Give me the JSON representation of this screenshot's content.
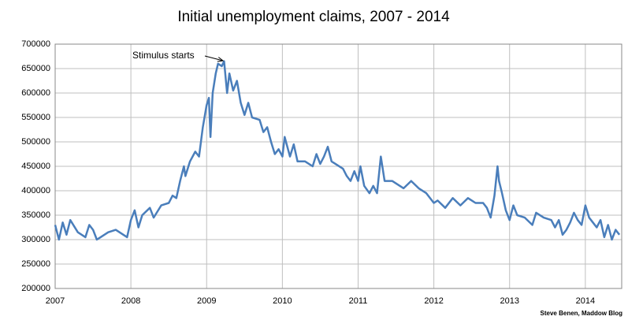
{
  "chart_data": {
    "type": "line",
    "title": "Initial unemployment claims, 2007 - 2014",
    "annotation": "Stimulus starts",
    "source": "Steve Benen, Maddow Blog",
    "color": "#4a7ebb",
    "grid": true,
    "xlim": [
      2007,
      2014.48
    ],
    "xticks": [
      2007,
      2008,
      2009,
      2010,
      2011,
      2012,
      2013,
      2014
    ],
    "ylim": [
      200000,
      700000
    ],
    "yticks": [
      200000,
      250000,
      300000,
      350000,
      400000,
      450000,
      500000,
      550000,
      600000,
      650000,
      700000
    ],
    "x": [
      2007.0,
      2007.05,
      2007.1,
      2007.15,
      2007.2,
      2007.3,
      2007.4,
      2007.45,
      2007.5,
      2007.55,
      2007.6,
      2007.7,
      2007.8,
      2007.9,
      2007.95,
      2008.0,
      2008.05,
      2008.1,
      2008.15,
      2008.25,
      2008.3,
      2008.4,
      2008.5,
      2008.55,
      2008.6,
      2008.65,
      2008.7,
      2008.72,
      2008.78,
      2008.85,
      2008.9,
      2008.95,
      2009.0,
      2009.03,
      2009.05,
      2009.08,
      2009.12,
      2009.15,
      2009.2,
      2009.23,
      2009.27,
      2009.3,
      2009.35,
      2009.4,
      2009.45,
      2009.5,
      2009.55,
      2009.6,
      2009.7,
      2009.75,
      2009.8,
      2009.85,
      2009.9,
      2009.95,
      2010.0,
      2010.03,
      2010.1,
      2010.15,
      2010.2,
      2010.3,
      2010.4,
      2010.45,
      2010.5,
      2010.55,
      2010.6,
      2010.65,
      2010.7,
      2010.8,
      2010.85,
      2010.9,
      2010.95,
      2011.0,
      2011.03,
      2011.08,
      2011.15,
      2011.2,
      2011.25,
      2011.3,
      2011.35,
      2011.45,
      2011.55,
      2011.6,
      2011.7,
      2011.8,
      2011.9,
      2012.0,
      2012.05,
      2012.15,
      2012.25,
      2012.35,
      2012.45,
      2012.55,
      2012.65,
      2012.7,
      2012.75,
      2012.8,
      2012.84,
      2012.86,
      2012.9,
      2012.95,
      2013.0,
      2013.05,
      2013.1,
      2013.2,
      2013.3,
      2013.35,
      2013.45,
      2013.55,
      2013.6,
      2013.65,
      2013.7,
      2013.75,
      2013.8,
      2013.85,
      2013.9,
      2013.95,
      2014.0,
      2014.05,
      2014.1,
      2014.15,
      2014.2,
      2014.25,
      2014.3,
      2014.35,
      2014.4,
      2014.45
    ],
    "values": [
      330000,
      300000,
      335000,
      310000,
      340000,
      315000,
      305000,
      330000,
      320000,
      300000,
      305000,
      315000,
      320000,
      310000,
      305000,
      340000,
      360000,
      325000,
      350000,
      365000,
      345000,
      370000,
      375000,
      390000,
      385000,
      420000,
      450000,
      430000,
      460000,
      480000,
      470000,
      530000,
      575000,
      590000,
      510000,
      600000,
      640000,
      660000,
      655000,
      665000,
      600000,
      640000,
      605000,
      625000,
      580000,
      555000,
      580000,
      550000,
      545000,
      520000,
      530000,
      500000,
      475000,
      485000,
      470000,
      510000,
      470000,
      495000,
      460000,
      460000,
      450000,
      475000,
      455000,
      470000,
      490000,
      460000,
      455000,
      445000,
      430000,
      420000,
      440000,
      420000,
      450000,
      410000,
      395000,
      410000,
      395000,
      470000,
      420000,
      420000,
      410000,
      405000,
      420000,
      405000,
      395000,
      375000,
      380000,
      365000,
      385000,
      370000,
      385000,
      375000,
      375000,
      365000,
      345000,
      390000,
      450000,
      420000,
      395000,
      360000,
      340000,
      370000,
      350000,
      345000,
      330000,
      355000,
      345000,
      340000,
      325000,
      340000,
      310000,
      320000,
      335000,
      355000,
      340000,
      330000,
      370000,
      345000,
      335000,
      325000,
      340000,
      305000,
      330000,
      300000,
      320000,
      310000
    ]
  }
}
